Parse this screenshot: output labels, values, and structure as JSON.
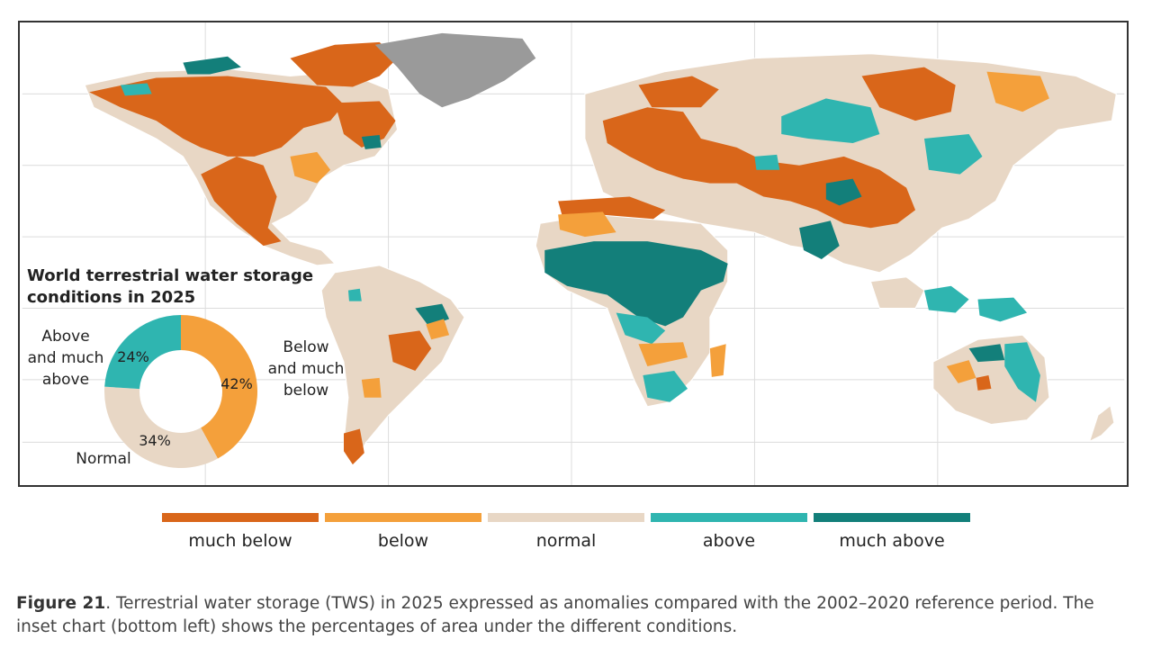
{
  "colors": {
    "much_below": "#d9661a",
    "below": "#f4a03b",
    "normal": "#e8d7c5",
    "above": "#2fb5b0",
    "much_above": "#137f7a",
    "no_data": "#9a9a9a"
  },
  "inset": {
    "title_line1": "World terrestrial water storage",
    "title_line2": "conditions in 2025",
    "label_above_1": "Above",
    "label_above_2": "and much",
    "label_above_3": "above",
    "label_below_1": "Below",
    "label_below_2": "and much",
    "label_below_3": "below",
    "label_normal": "Normal",
    "pct_above": "24%",
    "pct_below": "42%",
    "pct_normal": "34%"
  },
  "chart_data": {
    "type": "pie",
    "categories": [
      "Below and much below",
      "Normal",
      "Above and much above"
    ],
    "values": [
      42,
      34,
      24
    ],
    "title": "World terrestrial water storage conditions in 2025"
  },
  "legend": [
    {
      "label": "much below",
      "color": "#d9661a"
    },
    {
      "label": "below",
      "color": "#f4a03b"
    },
    {
      "label": "normal",
      "color": "#e8d7c5"
    },
    {
      "label": "above",
      "color": "#2fb5b0"
    },
    {
      "label": "much above",
      "color": "#137f7a"
    }
  ],
  "caption": {
    "figure_label": "Figure 21",
    "text": ". Terrestrial water storage (TWS) in 2025 expressed as anomalies compared with the 2002–2020 reference period. The inset chart (bottom left) shows the percentages of area under the different conditions."
  }
}
